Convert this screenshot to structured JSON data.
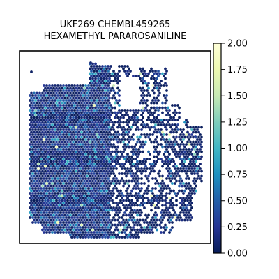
{
  "chart_data": {
    "type": "scatter",
    "title_lines": [
      "UKF269 CHEMBL459265",
      "HEXAMETHYL PARAROSANILINE"
    ],
    "xlabel": "",
    "ylabel": "",
    "axes_ticks_visible": false,
    "grid": false,
    "colorbar": {
      "colormap": "YlGnBu",
      "range": [
        0.0,
        2.0
      ],
      "ticks": [
        0.0,
        0.25,
        0.5,
        0.75,
        1.0,
        1.25,
        1.5,
        1.75,
        2.0
      ],
      "tick_labels": [
        "0.00",
        "0.25",
        "0.50",
        "0.75",
        "1.00",
        "1.25",
        "1.50",
        "1.75",
        "2.00"
      ],
      "colors": [
        "#081d58",
        "#253494",
        "#225ea8",
        "#1d91c0",
        "#41b6c4",
        "#7fcdbb",
        "#c7e9b4",
        "#edf8b1",
        "#ffffd9"
      ]
    },
    "spot_value_distribution": "mostly 0.0-0.4, scattered spots 0.5-1.0, rare high values 1.5-2.0",
    "colors": {
      "frame": "#000000",
      "background": "#ffffff"
    }
  }
}
